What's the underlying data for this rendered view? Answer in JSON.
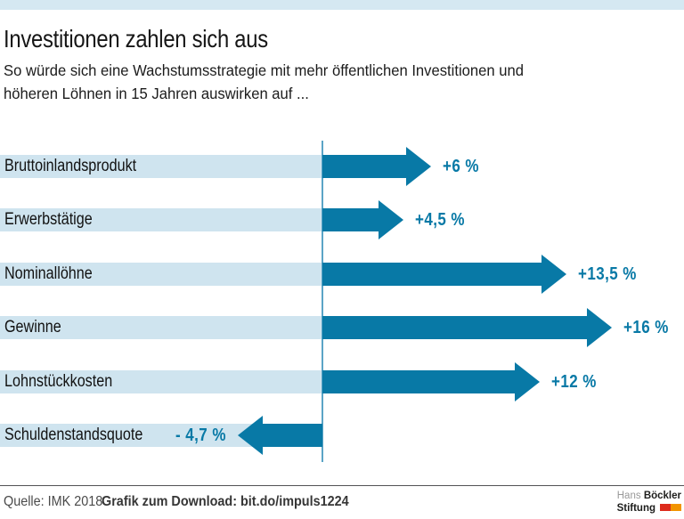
{
  "header": {
    "title": "Investitionen zahlen sich aus",
    "subtitle_lines": [
      "So würde sich eine Wachstumsstrategie mit mehr öffentlichen Investitionen und",
      "höheren Löhnen in 15 Jahren auswirken auf ..."
    ]
  },
  "chart_data": {
    "type": "bar",
    "orientation": "horizontal",
    "title": "Investitionen zahlen sich aus",
    "categories": [
      "Bruttoinlandsprodukt",
      "Erwerbstätige",
      "Nominallöhne",
      "Gewinne",
      "Lohnstückkosten",
      "Schuldenstandsquote"
    ],
    "values": [
      6,
      4.5,
      13.5,
      16,
      12,
      -4.7
    ],
    "value_labels": [
      "+6 %",
      "+4,5 %",
      "+13,5 %",
      "+16 %",
      "+12 %",
      "- 4,7 %"
    ],
    "unit": "%",
    "baseline": 0,
    "xlim": [
      -6,
      20
    ],
    "grid": false,
    "legend": false,
    "bar_color": "#0879a6",
    "band_color": "#cfe4ef"
  },
  "footer": {
    "source": "Quelle: IMK 2018",
    "download": "Grafik zum Download: bit.do/impuls1224",
    "logo": {
      "line1_regular": "Hans",
      "line1_bold": "Böckler",
      "line2_bold": "Stiftung"
    }
  },
  "colors": {
    "accent_bar": "#d5e8f2",
    "band": "#cfe4ef",
    "arrow": "#0879a6",
    "axis_line": "#5ba4c6",
    "value_text": "#0879a6",
    "logo_red": "#dd2b1c",
    "logo_orange": "#f29400"
  }
}
